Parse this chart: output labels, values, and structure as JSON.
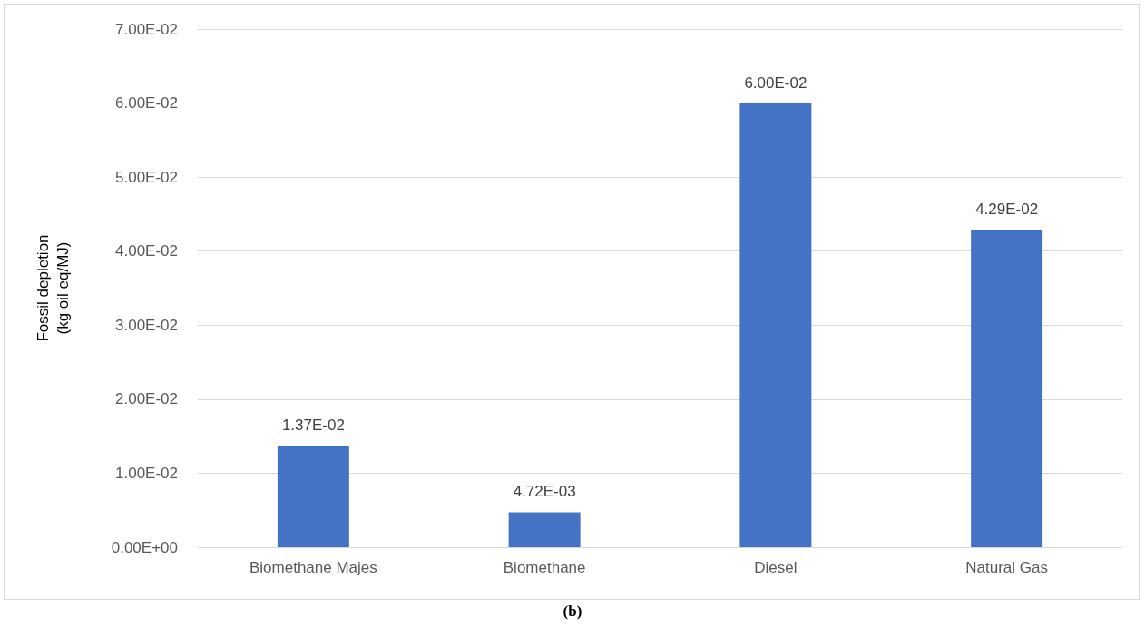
{
  "chart_data": {
    "type": "bar",
    "ylabel": "Fossil depletion\n(kg oil eq/MJ)",
    "categories": [
      "Biomethane Majes",
      "Biomethane",
      "Diesel",
      "Natural Gas"
    ],
    "values": [
      0.0137,
      0.00472,
      0.06,
      0.0429
    ],
    "value_labels": [
      "1.37E-02",
      "4.72E-03",
      "6.00E-02",
      "4.29E-02"
    ],
    "color": "#4472c4",
    "ylim": [
      0,
      0.07
    ],
    "yticks": [
      {
        "value": 0,
        "label": "0.00E+00"
      },
      {
        "value": 0.01,
        "label": "1.00E-02"
      },
      {
        "value": 0.02,
        "label": "2.00E-02"
      },
      {
        "value": 0.03,
        "label": "3.00E-02"
      },
      {
        "value": 0.04,
        "label": "4.00E-02"
      },
      {
        "value": 0.05,
        "label": "5.00E-02"
      },
      {
        "value": 0.06,
        "label": "6.00E-02"
      },
      {
        "value": 0.07,
        "label": "7.00E-02"
      }
    ],
    "grid": "y",
    "annotations": [
      "(b)"
    ]
  }
}
